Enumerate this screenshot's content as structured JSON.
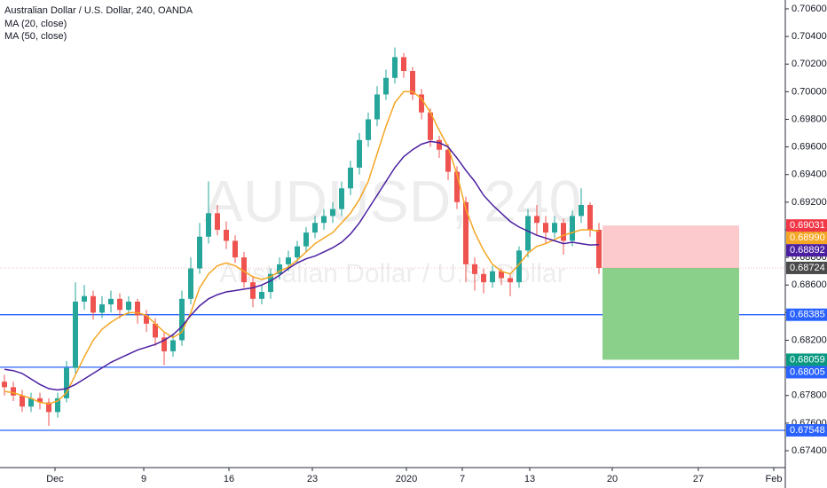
{
  "chart_data": {
    "type": "candlestick",
    "title": "Australian Dollar / U.S. Dollar, 240, OANDA",
    "watermark": "AUDUSD, 240",
    "watermark_subtitle": "Australian Dollar / U.S. Dollar",
    "up_color": "#26a69a",
    "down_color": "#ef5350",
    "x": [
      0,
      1,
      2,
      3,
      4,
      5,
      6,
      7,
      8,
      9,
      10,
      11,
      12,
      13,
      14,
      15,
      16,
      17,
      18,
      19,
      20,
      21,
      22,
      23,
      24,
      25,
      26,
      27,
      28,
      29,
      30,
      31,
      32,
      33,
      34,
      35,
      36,
      37,
      38,
      39,
      40,
      41,
      42,
      43,
      44,
      45,
      46,
      47,
      48,
      49,
      50,
      51,
      52,
      53,
      54,
      55,
      56,
      57,
      58,
      59,
      60,
      61,
      62,
      63,
      64,
      65,
      66,
      67
    ],
    "open": [
      0.679,
      0.6786,
      0.678,
      0.6772,
      0.6778,
      0.6775,
      0.6768,
      0.6778,
      0.68,
      0.6848,
      0.6852,
      0.684,
      0.6846,
      0.685,
      0.6842,
      0.6848,
      0.6838,
      0.6832,
      0.6822,
      0.6812,
      0.682,
      0.685,
      0.6872,
      0.6895,
      0.6912,
      0.69,
      0.6892,
      0.688,
      0.6862,
      0.685,
      0.6855,
      0.6868,
      0.6875,
      0.688,
      0.6888,
      0.6898,
      0.6905,
      0.691,
      0.6915,
      0.693,
      0.6945,
      0.6965,
      0.698,
      0.6998,
      0.701,
      0.7025,
      0.7015,
      0.6998,
      0.6985,
      0.6965,
      0.6958,
      0.6942,
      0.692,
      0.6875,
      0.6868,
      0.6862,
      0.687,
      0.6865,
      0.6862,
      0.6885,
      0.691,
      0.6905,
      0.6898,
      0.6905,
      0.6892,
      0.691,
      0.6918,
      0.69
    ],
    "high": [
      0.6795,
      0.679,
      0.6784,
      0.6782,
      0.6782,
      0.6778,
      0.6782,
      0.6805,
      0.6862,
      0.686,
      0.6856,
      0.6852,
      0.6856,
      0.6854,
      0.6852,
      0.685,
      0.6842,
      0.6836,
      0.6826,
      0.6825,
      0.6856,
      0.688,
      0.6905,
      0.6935,
      0.6918,
      0.6906,
      0.6896,
      0.6884,
      0.6866,
      0.686,
      0.6872,
      0.688,
      0.6885,
      0.6892,
      0.6902,
      0.691,
      0.6915,
      0.692,
      0.6935,
      0.695,
      0.697,
      0.6985,
      0.7004,
      0.7016,
      0.7032,
      0.7028,
      0.7018,
      0.7002,
      0.6988,
      0.6968,
      0.6962,
      0.6946,
      0.6924,
      0.688,
      0.6872,
      0.6874,
      0.6872,
      0.6868,
      0.6888,
      0.6915,
      0.6918,
      0.691,
      0.691,
      0.6908,
      0.6914,
      0.693,
      0.692,
      0.6905
    ],
    "low": [
      0.678,
      0.6776,
      0.6768,
      0.6768,
      0.677,
      0.6758,
      0.6764,
      0.6775,
      0.6796,
      0.6842,
      0.6835,
      0.6836,
      0.684,
      0.6836,
      0.6838,
      0.6832,
      0.6826,
      0.6816,
      0.6802,
      0.6808,
      0.6816,
      0.6846,
      0.6868,
      0.689,
      0.6896,
      0.6886,
      0.6876,
      0.6858,
      0.6844,
      0.6846,
      0.685,
      0.6864,
      0.687,
      0.6876,
      0.6884,
      0.6894,
      0.69,
      0.6905,
      0.691,
      0.6925,
      0.694,
      0.696,
      0.6975,
      0.6994,
      0.7006,
      0.701,
      0.6994,
      0.698,
      0.696,
      0.6952,
      0.6936,
      0.6915,
      0.6862,
      0.6856,
      0.6854,
      0.6858,
      0.686,
      0.6852,
      0.6858,
      0.688,
      0.6896,
      0.689,
      0.6894,
      0.6882,
      0.6888,
      0.6905,
      0.6895,
      0.6868
    ],
    "close": [
      0.6786,
      0.678,
      0.6772,
      0.6778,
      0.6775,
      0.6768,
      0.6778,
      0.68,
      0.6848,
      0.6852,
      0.684,
      0.6846,
      0.685,
      0.6842,
      0.6848,
      0.6838,
      0.6832,
      0.6822,
      0.6812,
      0.682,
      0.685,
      0.6872,
      0.6895,
      0.6912,
      0.69,
      0.6892,
      0.688,
      0.6862,
      0.685,
      0.6855,
      0.6868,
      0.6875,
      0.688,
      0.6888,
      0.6898,
      0.6905,
      0.691,
      0.6915,
      0.693,
      0.6945,
      0.6965,
      0.698,
      0.6998,
      0.701,
      0.7025,
      0.7015,
      0.6998,
      0.6985,
      0.6965,
      0.6958,
      0.6942,
      0.692,
      0.6875,
      0.6868,
      0.6862,
      0.687,
      0.6865,
      0.6862,
      0.6885,
      0.691,
      0.6905,
      0.6898,
      0.6905,
      0.6892,
      0.691,
      0.6918,
      0.69,
      0.68724
    ],
    "close_last_label": "0.68724",
    "close_color": "#4a4a4a",
    "series": [
      {
        "name": "MA (20, close)",
        "color": "#f5a623",
        "last_label": "0.68990",
        "values": [
          0.6783,
          0.6782,
          0.678,
          0.6778,
          0.6775,
          0.6774,
          0.6776,
          0.6782,
          0.6795,
          0.6808,
          0.682,
          0.6828,
          0.6833,
          0.6837,
          0.684,
          0.684,
          0.6838,
          0.6832,
          0.6826,
          0.6822,
          0.6826,
          0.684,
          0.6858,
          0.6868,
          0.6874,
          0.6876,
          0.6874,
          0.687,
          0.6866,
          0.6864,
          0.6866,
          0.687,
          0.6873,
          0.6878,
          0.6884,
          0.689,
          0.6894,
          0.6898,
          0.6905,
          0.6912,
          0.6922,
          0.6935,
          0.6955,
          0.6975,
          0.6992,
          0.7,
          0.7,
          0.6995,
          0.6985,
          0.6972,
          0.696,
          0.694,
          0.6915,
          0.6898,
          0.6885,
          0.6875,
          0.687,
          0.6868,
          0.6875,
          0.6883,
          0.6888,
          0.689,
          0.6893,
          0.6896,
          0.6898,
          0.69,
          0.69,
          0.6899
        ]
      },
      {
        "name": "MA (50, close)",
        "color": "#4b1fa0",
        "last_label": "0.68892",
        "values": [
          0.6799,
          0.6798,
          0.6796,
          0.6792,
          0.6788,
          0.6785,
          0.6784,
          0.6785,
          0.6788,
          0.6792,
          0.6796,
          0.68,
          0.6804,
          0.6807,
          0.681,
          0.6813,
          0.6815,
          0.6817,
          0.682,
          0.6824,
          0.683,
          0.6838,
          0.6845,
          0.685,
          0.6853,
          0.6855,
          0.6856,
          0.6857,
          0.6858,
          0.686,
          0.6863,
          0.6867,
          0.6872,
          0.6876,
          0.6879,
          0.6881,
          0.6884,
          0.6887,
          0.6891,
          0.6897,
          0.6905,
          0.6915,
          0.6925,
          0.6935,
          0.6945,
          0.6953,
          0.6958,
          0.6962,
          0.6964,
          0.6963,
          0.696,
          0.6952,
          0.6943,
          0.6935,
          0.6925,
          0.6918,
          0.6912,
          0.6906,
          0.6902,
          0.6899,
          0.6896,
          0.6894,
          0.6892,
          0.689,
          0.6891,
          0.689,
          0.6889,
          0.68892
        ]
      }
    ],
    "hline_color": "#2962ff",
    "hlines": [
      {
        "value": 0.68385,
        "label": "0.68385"
      },
      {
        "value": 0.68005,
        "label": "0.68005"
      },
      {
        "value": 0.67548,
        "label": "0.67548"
      }
    ],
    "position": {
      "x": [
        67.4,
        82.8
      ],
      "entry": 0.68724,
      "stop": {
        "value": 0.69031,
        "label": "0.69031"
      },
      "target": {
        "value": 0.68059,
        "label": "0.68059"
      },
      "stop_color": "#f23645",
      "stop_fill": "#fcc9cc",
      "target_color": "#089981",
      "target_fill": "#8bd08a"
    },
    "xlim": [
      -0.5,
      88
    ],
    "ylim": [
      0.67278,
      0.70664
    ],
    "xticks": [
      {
        "value": 5.7,
        "label": "Dec"
      },
      {
        "value": 15.7,
        "label": "9"
      },
      {
        "value": 25.3,
        "label": "16"
      },
      {
        "value": 34.7,
        "label": "23"
      },
      {
        "value": 45.3,
        "label": "2020"
      },
      {
        "value": 51.6,
        "label": "7"
      },
      {
        "value": 59.2,
        "label": "13"
      },
      {
        "value": 68.5,
        "label": "20"
      },
      {
        "value": 78.2,
        "label": "27"
      },
      {
        "value": 86.7,
        "label": "Feb"
      }
    ],
    "yticks": [
      {
        "value": 0.706,
        "label": "0.70600"
      },
      {
        "value": 0.704,
        "label": "0.70400"
      },
      {
        "value": 0.702,
        "label": "0.70200"
      },
      {
        "value": 0.7,
        "label": "0.70000"
      },
      {
        "value": 0.698,
        "label": "0.69800"
      },
      {
        "value": 0.696,
        "label": "0.69600"
      },
      {
        "value": 0.694,
        "label": "0.69400"
      },
      {
        "value": 0.692,
        "label": "0.69200"
      },
      {
        "value": 0.69,
        "label": "0.69000"
      },
      {
        "value": 0.688,
        "label": "0.68800"
      },
      {
        "value": 0.686,
        "label": "0.68600"
      },
      {
        "value": 0.684,
        "label": "0.68400"
      },
      {
        "value": 0.682,
        "label": "0.68200"
      },
      {
        "value": 0.68,
        "label": "0.68000"
      },
      {
        "value": 0.678,
        "label": "0.67800"
      },
      {
        "value": 0.676,
        "label": "0.67600"
      },
      {
        "value": 0.674,
        "label": "0.67400"
      }
    ]
  }
}
